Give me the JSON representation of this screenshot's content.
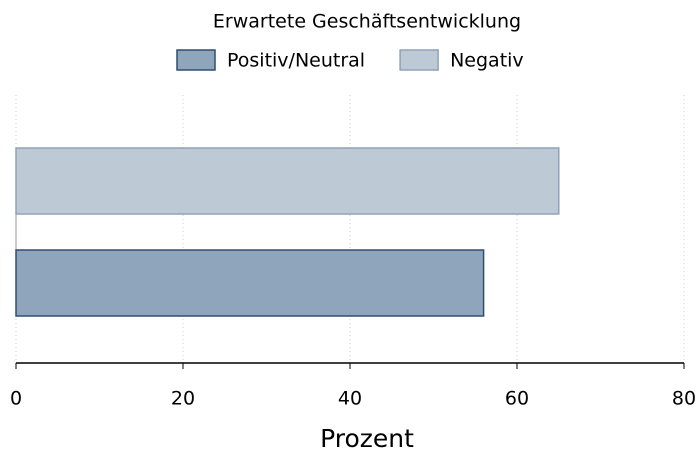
{
  "chart_data": {
    "type": "barh",
    "legend_title": "Erwartete Geschäftsentwicklung",
    "legend": "top",
    "categories": [
      null
    ],
    "series": [
      {
        "name": "Positiv/Neutral",
        "color": "#8ea5bb",
        "edgecolor": "#2f4f70",
        "values": [
          56
        ]
      },
      {
        "name": "Negativ",
        "color": "#bdc9d5",
        "edgecolor": "#8fa3b8",
        "values": [
          65
        ]
      }
    ],
    "xlabel": "Prozent",
    "xlim": [
      0,
      80
    ],
    "xticks": [
      0,
      20,
      40,
      60,
      80
    ],
    "grid": true
  }
}
